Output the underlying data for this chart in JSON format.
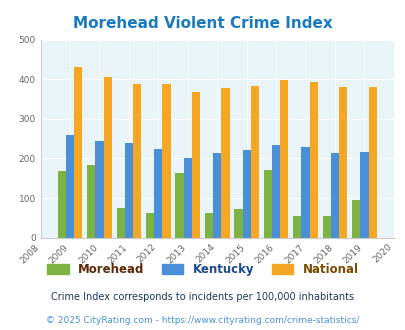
{
  "title": "Morehead Violent Crime Index",
  "years": [
    2009,
    2010,
    2011,
    2012,
    2013,
    2014,
    2015,
    2016,
    2017,
    2018,
    2019
  ],
  "morehead": [
    168,
    183,
    76,
    61,
    163,
    61,
    73,
    170,
    54,
    54,
    94
  ],
  "kentucky": [
    260,
    244,
    240,
    224,
    202,
    214,
    221,
    235,
    228,
    213,
    217
  ],
  "national": [
    430,
    405,
    388,
    388,
    368,
    377,
    383,
    397,
    394,
    381,
    381
  ],
  "morehead_color": "#7cb342",
  "kentucky_color": "#4a90d9",
  "national_color": "#f5a623",
  "bg_color": "#e8f4f8",
  "xlim": [
    2008,
    2020
  ],
  "ylim": [
    0,
    500
  ],
  "yticks": [
    0,
    100,
    200,
    300,
    400,
    500
  ],
  "xticks": [
    2008,
    2009,
    2010,
    2011,
    2012,
    2013,
    2014,
    2015,
    2016,
    2017,
    2018,
    2019,
    2020
  ],
  "subtitle": "Crime Index corresponds to incidents per 100,000 inhabitants",
  "footer": "© 2025 CityRating.com - https://www.cityrating.com/crime-statistics/",
  "title_color": "#1a7abf",
  "subtitle_color": "#1a3a5c",
  "footer_color": "#4a90d9",
  "bar_width": 0.28,
  "legend_labels": [
    "Morehead",
    "Kentucky",
    "National"
  ],
  "legend_text_colors": [
    "#5c2a0a",
    "#1a4a8a",
    "#7a4a00"
  ]
}
